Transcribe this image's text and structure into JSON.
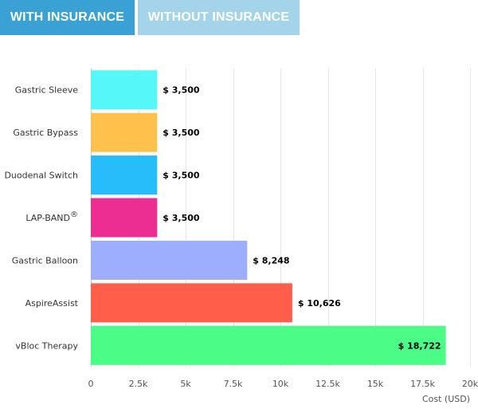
{
  "tabs": [
    {
      "label": "WITH INSURANCE",
      "active": true,
      "color": "#3aa1d4"
    },
    {
      "label": "WITHOUT INSURANCE",
      "active": false,
      "color": "#a3d4ea"
    }
  ],
  "chart_data": {
    "type": "bar",
    "orientation": "horizontal",
    "categories": [
      "Gastric Sleeve",
      "Gastric Bypass",
      "Duodenal Switch",
      "LAP-BAND",
      "Gastric Balloon",
      "AspireAssist",
      "vBloc Therapy"
    ],
    "category_superscripts": {
      "LAP-BAND": "®"
    },
    "values": [
      3500,
      3500,
      3500,
      3500,
      8248,
      10626,
      18722
    ],
    "data_labels": [
      "$ 3,500",
      "$ 3,500",
      "$ 3,500",
      "$ 3,500",
      "$ 8,248",
      "$ 10,626",
      "$ 18,722"
    ],
    "colors": [
      "#55f7f9",
      "#fec24c",
      "#27bdfb",
      "#ec2e92",
      "#9eaefe",
      "#ff5e4a",
      "#4bfd87"
    ],
    "xlabel": "Cost (USD)",
    "xlim": [
      0,
      20000
    ],
    "xticks": [
      0,
      2500,
      5000,
      7500,
      10000,
      12500,
      15000,
      17500,
      20000
    ],
    "xtick_labels": [
      "0",
      "2.5k",
      "5k",
      "7.5k",
      "10k",
      "12.5k",
      "15k",
      "17.5k",
      "20k"
    ],
    "grid": true,
    "legend": false
  }
}
